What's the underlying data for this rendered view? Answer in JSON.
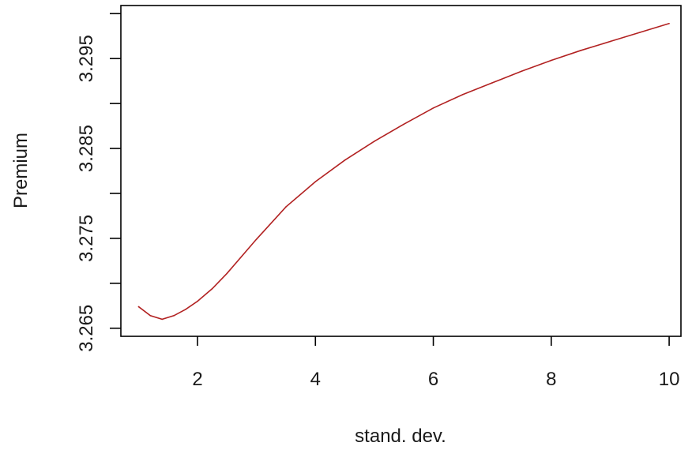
{
  "chart_data": {
    "type": "line",
    "title": "",
    "xlabel": "stand. dev.",
    "ylabel": "Premium",
    "xlim": [
      0.7,
      10.2
    ],
    "ylim": [
      3.2641,
      3.3009
    ],
    "x_ticks": [
      2,
      4,
      6,
      8,
      10
    ],
    "y_ticks": [
      3.265,
      3.27,
      3.275,
      3.28,
      3.285,
      3.29,
      3.295,
      3.3
    ],
    "y_tick_labels": [
      "3.265",
      "",
      "3.275",
      "",
      "3.285",
      "",
      "3.295",
      ""
    ],
    "grid": false,
    "line_color": "#b22222",
    "series": [
      {
        "x": [
          1.0,
          1.2,
          1.4,
          1.6,
          1.8,
          2.0,
          2.25,
          2.5,
          3.0,
          3.5,
          4.0,
          4.5,
          5.0,
          5.5,
          6.0,
          6.5,
          7.0,
          7.5,
          8.0,
          8.5,
          9.0,
          9.5,
          10.0
        ],
        "y": [
          3.2674,
          3.2664,
          3.266,
          3.2664,
          3.2671,
          3.268,
          3.2694,
          3.2711,
          3.2749,
          3.2785,
          3.2813,
          3.2837,
          3.2858,
          3.2877,
          3.2895,
          3.291,
          3.2923,
          3.2936,
          3.2948,
          3.2959,
          3.2969,
          3.2979,
          3.2989
        ]
      }
    ]
  }
}
